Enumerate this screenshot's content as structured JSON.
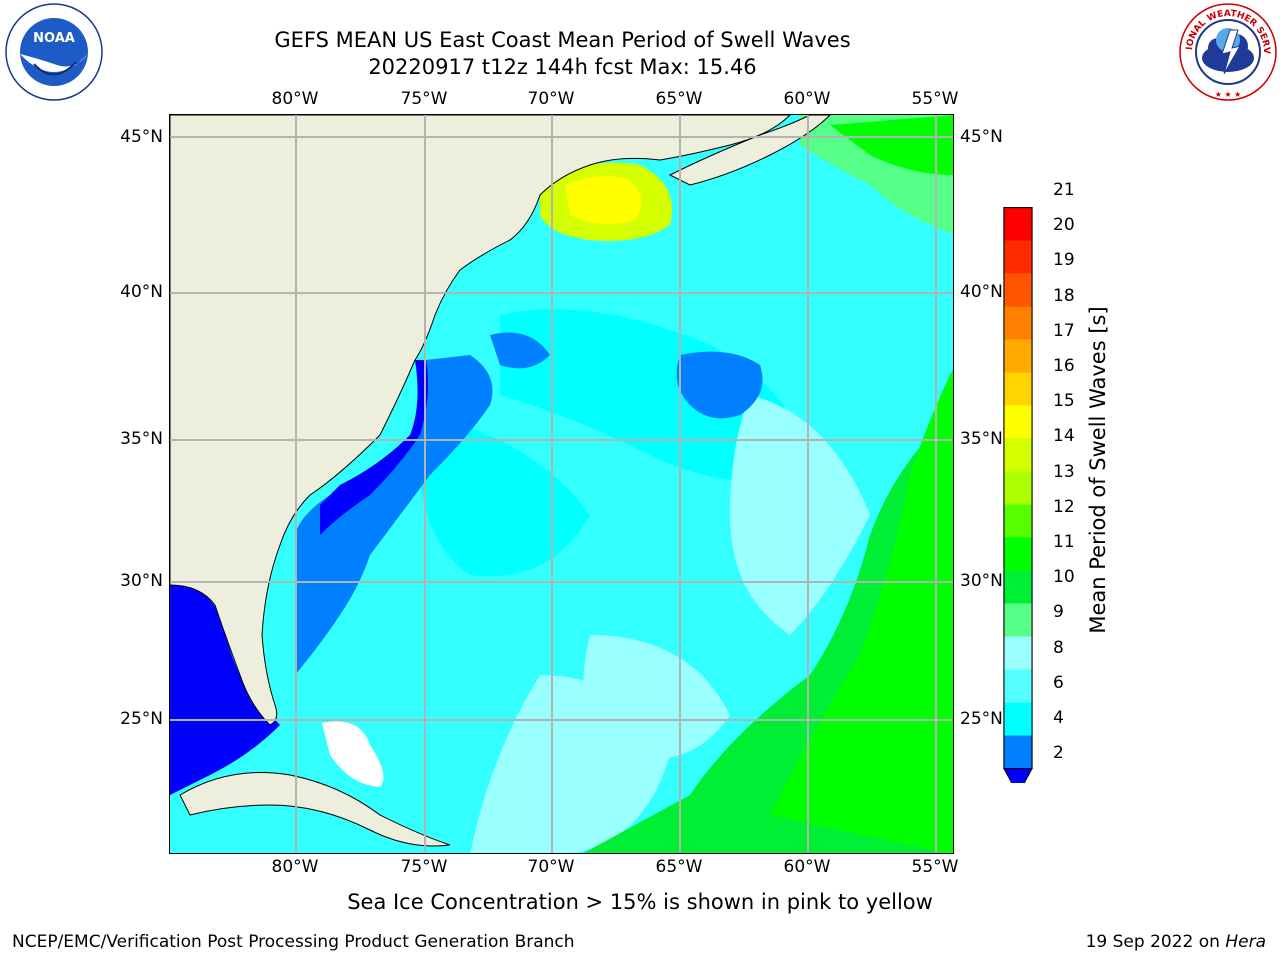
{
  "title": {
    "line1": "GEFS MEAN US East Coast Mean Period of Swell Waves",
    "line2": "20220917 t12z 144h fcst   Max: 15.46"
  },
  "logos": {
    "left": {
      "name": "noaa-logo",
      "text": "NOAA"
    },
    "right": {
      "name": "nws-logo",
      "text": "NATIONAL WEATHER SERVICE"
    }
  },
  "map": {
    "lon_labels": [
      "80°W",
      "75°W",
      "70°W",
      "65°W",
      "60°W",
      "55°W"
    ],
    "lat_labels": [
      "45°N",
      "40°N",
      "35°N",
      "30°N",
      "25°N"
    ],
    "grid_color": "#b3b3b3",
    "land_color": "#eeeedd"
  },
  "colorbar": {
    "title": "Mean Period of Swell Waves [s]",
    "labels": [
      "21",
      "20",
      "19",
      "18",
      "17",
      "16",
      "15",
      "14",
      "13",
      "12",
      "11",
      "10",
      "9",
      "8",
      "6",
      "4",
      "2"
    ],
    "colors": [
      "#ff0000",
      "#ff2a00",
      "#ff5500",
      "#ff7f00",
      "#ffaa00",
      "#ffd400",
      "#ffff00",
      "#d4ff00",
      "#aaff00",
      "#55ff00",
      "#00ff00",
      "#00ee33",
      "#55ff88",
      "#99ffff",
      "#55ffff",
      "#00ffff",
      "#0080ff",
      "#0000ff"
    ]
  },
  "footer": {
    "note": "Sea Ice Concentration > 15% is shown in pink to yellow",
    "left": "NCEP/EMC/Verification Post Processing Product Generation Branch",
    "right_date": "19 Sep 2022 on",
    "right_machine": "Hera"
  }
}
